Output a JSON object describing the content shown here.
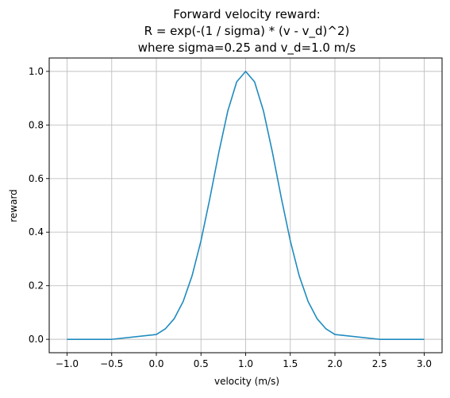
{
  "chart_data": {
    "type": "line",
    "title_lines": [
      "Forward velocity reward:",
      "R = exp(-(1 / sigma) * (v - v_d)^2)",
      "where sigma=0.25 and v_d=1.0 m/s"
    ],
    "xlabel": "velocity (m/s)",
    "ylabel": "reward",
    "xlim": [
      -1.2,
      3.2
    ],
    "ylim": [
      -0.05,
      1.05
    ],
    "x_ticks": [
      -1.0,
      -0.5,
      0.0,
      0.5,
      1.0,
      1.5,
      2.0,
      2.5,
      3.0
    ],
    "x_tick_labels": [
      "−1.0",
      "−0.5",
      "0.0",
      "0.5",
      "1.0",
      "1.5",
      "2.0",
      "2.5",
      "3.0"
    ],
    "y_ticks": [
      0.0,
      0.2,
      0.4,
      0.6,
      0.8,
      1.0
    ],
    "y_tick_labels": [
      "0.0",
      "0.2",
      "0.4",
      "0.6",
      "0.8",
      "1.0"
    ],
    "grid": true,
    "series": [
      {
        "color": "#1f8bbf",
        "x": [
          -1.0,
          -0.5,
          0.0,
          0.1,
          0.2,
          0.3,
          0.4,
          0.5,
          0.6,
          0.7,
          0.8,
          0.9,
          1.0,
          1.1,
          1.2,
          1.3,
          1.4,
          1.5,
          1.6,
          1.7,
          1.8,
          1.9,
          2.0,
          2.5,
          3.0
        ],
        "y": [
          0.0,
          0.0,
          0.018,
          0.039,
          0.077,
          0.141,
          0.237,
          0.368,
          0.527,
          0.698,
          0.852,
          0.961,
          1.0,
          0.961,
          0.852,
          0.698,
          0.527,
          0.368,
          0.237,
          0.141,
          0.077,
          0.039,
          0.018,
          0.0,
          0.0
        ]
      }
    ]
  }
}
